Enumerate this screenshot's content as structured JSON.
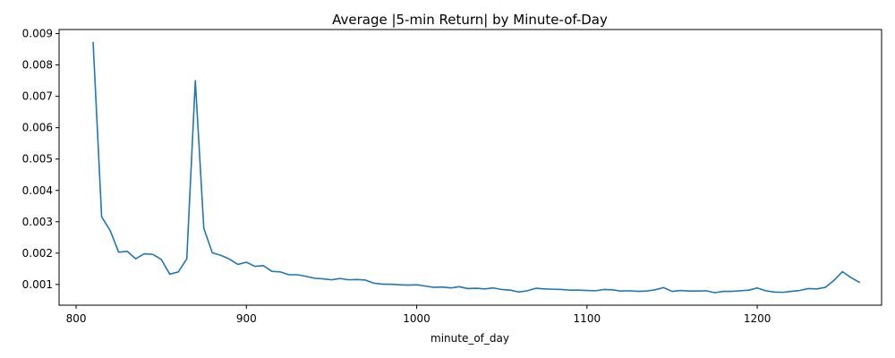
{
  "chart_data": {
    "type": "line",
    "title": "Average |5-min Return| by Minute-of-Day",
    "xlabel": "minute_of_day",
    "ylabel": "",
    "xlim": [
      790,
      1273
    ],
    "ylim": [
      0.00034,
      0.00913
    ],
    "xticks": [
      800,
      900,
      1000,
      1100,
      1200
    ],
    "xtick_labels": [
      "800",
      "900",
      "1000",
      "1100",
      "1200"
    ],
    "yticks": [
      0.001,
      0.002,
      0.003,
      0.004,
      0.005,
      0.006,
      0.007,
      0.008,
      0.009
    ],
    "ytick_labels": [
      "0.001",
      "0.002",
      "0.003",
      "0.004",
      "0.005",
      "0.006",
      "0.007",
      "0.008",
      "0.009"
    ],
    "grid": false,
    "colors": {
      "series": "#1f77b4"
    },
    "series": [
      {
        "x": [
          810,
          815,
          820,
          825,
          830,
          835,
          840,
          845,
          850,
          855,
          860,
          865,
          870,
          875,
          880,
          885,
          890,
          895,
          900,
          905,
          910,
          915,
          920,
          925,
          930,
          935,
          940,
          945,
          950,
          955,
          960,
          965,
          970,
          975,
          980,
          985,
          990,
          995,
          1000,
          1005,
          1010,
          1015,
          1020,
          1025,
          1030,
          1035,
          1040,
          1045,
          1050,
          1055,
          1060,
          1065,
          1070,
          1075,
          1080,
          1085,
          1090,
          1095,
          1100,
          1105,
          1110,
          1115,
          1120,
          1125,
          1130,
          1135,
          1140,
          1145,
          1150,
          1155,
          1160,
          1165,
          1170,
          1175,
          1180,
          1185,
          1190,
          1195,
          1200,
          1205,
          1210,
          1215,
          1220,
          1225,
          1230,
          1235,
          1240,
          1245,
          1250,
          1255,
          1260
        ],
        "values": [
          0.00872,
          0.00316,
          0.00272,
          0.00203,
          0.00206,
          0.00182,
          0.00198,
          0.00196,
          0.0018,
          0.00133,
          0.0014,
          0.00182,
          0.0075,
          0.00279,
          0.00201,
          0.00193,
          0.00181,
          0.00164,
          0.00171,
          0.00158,
          0.0016,
          0.00142,
          0.0014,
          0.00131,
          0.00131,
          0.00126,
          0.0012,
          0.00118,
          0.00115,
          0.00119,
          0.00115,
          0.00116,
          0.00114,
          0.00104,
          0.00101,
          0.00101,
          0.00099,
          0.00098,
          0.00099,
          0.00095,
          0.00091,
          0.00092,
          0.00089,
          0.00093,
          0.00087,
          0.00088,
          0.00086,
          0.00089,
          0.00084,
          0.00082,
          0.00076,
          0.0008,
          0.00088,
          0.00086,
          0.00085,
          0.00084,
          0.00082,
          0.00082,
          0.00081,
          0.0008,
          0.00084,
          0.00083,
          0.00079,
          0.0008,
          0.00078,
          0.00079,
          0.00083,
          0.0009,
          0.00078,
          0.00081,
          0.00079,
          0.00079,
          0.0008,
          0.00074,
          0.00078,
          0.00078,
          0.0008,
          0.00082,
          0.00089,
          0.0008,
          0.00076,
          0.00075,
          0.00078,
          0.00081,
          0.00087,
          0.00086,
          0.00091,
          0.00113,
          0.00141,
          0.00122,
          0.00107
        ]
      }
    ]
  }
}
